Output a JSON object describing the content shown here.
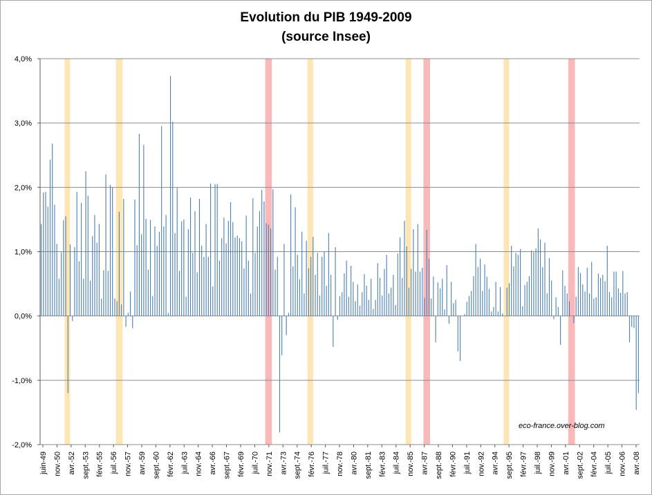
{
  "chart_data": {
    "type": "bar",
    "title": "Evolution du PIB 1949-2009",
    "subtitle": "(source Insee)",
    "credit": "eco-france.over-blog.com",
    "y_ticks": [
      "4,0%",
      "3,0%",
      "2,0%",
      "1,0%",
      "0,0%",
      "-1,0%",
      "-2,0%"
    ],
    "ylim": [
      -2.0,
      4.0
    ],
    "grid": "horizontal",
    "x_start": "1949-Q2",
    "x_tick_labels": [
      "juin-49",
      "nov.-50",
      "avr.-52",
      "sept.-53",
      "févr.-55",
      "juil.-56",
      "nov.-57",
      "avr.-59",
      "sept.-60",
      "févr.-62",
      "juil.-63",
      "nov.-64",
      "avr.-66",
      "sept.-67",
      "févr.-69",
      "juil.-70",
      "nov.-71",
      "avr.-73",
      "sept.-74",
      "févr.-76",
      "juil.-77",
      "nov.-78",
      "avr.-80",
      "sept.-81",
      "févr.-83",
      "juil.-84",
      "nov.-85",
      "avr.-87",
      "sept.-88",
      "févr.-90",
      "juil.-91",
      "nov.-92",
      "avr.-94",
      "sept.-95",
      "févr.-97",
      "juil.-98",
      "nov.-99",
      "avr.-01",
      "sept.-02",
      "févr.-04",
      "juil.-05",
      "nov.-06",
      "avr.-08"
    ],
    "values": [
      1.43,
      1.92,
      1.93,
      1.7,
      2.43,
      2.68,
      1.73,
      1.12,
      0.58,
      0.99,
      1.49,
      1.55,
      -1.2,
      1.11,
      -0.08,
      1.07,
      1.93,
      0.85,
      1.76,
      0.58,
      2.25,
      1.87,
      0.55,
      1.24,
      1.57,
      1.14,
      1.43,
      0.27,
      0.71,
      2.2,
      0.7,
      2.04,
      2.0,
      0.27,
      0.23,
      1.62,
      0.18,
      1.82,
      -0.17,
      0.05,
      0.38,
      -0.19,
      1.81,
      1.1,
      2.83,
      1.27,
      2.66,
      1.51,
      0.72,
      1.49,
      0.31,
      1.39,
      1.09,
      1.31,
      2.95,
      1.39,
      1.57,
      0.05,
      3.73,
      3.02,
      1.29,
      1.99,
      0.7,
      1.47,
      1.5,
      0.3,
      1.35,
      1.84,
      0.98,
      1.63,
      0.68,
      1.82,
      1.09,
      0.92,
      1.43,
      0.92,
      2.06,
      0.46,
      2.05,
      2.05,
      0.86,
      1.21,
      1.53,
      1.13,
      1.48,
      1.77,
      1.46,
      1.22,
      1.25,
      1.21,
      1.16,
      0.74,
      1.56,
      0.86,
      0.35,
      1.83,
      0.98,
      1.39,
      1.63,
      1.96,
      1.78,
      1.44,
      1.42,
      1.36,
      1.97,
      0.72,
      0.92,
      -1.81,
      -0.61,
      1.12,
      -0.3,
      0.05,
      1.89,
      0.77,
      1.69,
      0.95,
      0.57,
      1.31,
      0.35,
      1.17,
      0.74,
      0.92,
      1.23,
      0.64,
      0.98,
      0.32,
      0.92,
      1.0,
      0.47,
      1.29,
      0.64,
      -0.48,
      1.07,
      -0.06,
      0.31,
      0.37,
      0.66,
      0.86,
      0.3,
      0.78,
      0.53,
      0.23,
      0.49,
      0.16,
      0.37,
      0.65,
      0.47,
      0.25,
      0.58,
      0.11,
      0.25,
      0.82,
      0.59,
      0.32,
      0.73,
      0.95,
      0.35,
      0.44,
      0.64,
      0.17,
      0.97,
      1.22,
      0.59,
      1.48,
      1.08,
      0.44,
      0.73,
      1.35,
      0.69,
      1.43,
      0.69,
      0.75,
      0.28,
      1.34,
      0.89,
      0.27,
      0.61,
      -0.41,
      0.52,
      0.43,
      0.58,
      0.1,
      0.79,
      -0.12,
      0.53,
      0.2,
      0.25,
      -0.55,
      -0.7,
      0.0,
      0.03,
      0.22,
      0.31,
      0.39,
      0.62,
      1.12,
      0.76,
      0.89,
      0.39,
      0.8,
      0.61,
      0.42,
      0.07,
      0.14,
      0.53,
      0.07,
      0.45,
      0.04,
      0.0,
      0.44,
      0.51,
      1.09,
      0.77,
      0.98,
      0.95,
      1.04,
      0.15,
      0.48,
      0.53,
      0.62,
      1.02,
      0.99,
      1.05,
      1.36,
      1.19,
      0.76,
      1.14,
      0.35,
      0.9,
      0.55,
      -0.05,
      0.29,
      0.14,
      -0.45,
      0.71,
      0.47,
      0.35,
      0.23,
      0.0,
      -0.11,
      0.3,
      0.76,
      0.67,
      0.49,
      0.38,
      0.75,
      0.35,
      0.84,
      0.27,
      0.29,
      0.66,
      0.59,
      0.64,
      0.54,
      1.09,
      0.37,
      0.29,
      0.69,
      0.69,
      0.43,
      0.36,
      0.7,
      0.35,
      0.37,
      -0.41,
      -0.17,
      -0.19,
      -1.46,
      -1.2
    ],
    "recession_bands": [
      {
        "from": 11,
        "to": 12,
        "color": "#fde5b4"
      },
      {
        "from": 34,
        "to": 36,
        "color": "#fde5b4"
      },
      {
        "from": 101,
        "to": 103,
        "color": "#f9b9bb"
      },
      {
        "from": 120,
        "to": 121,
        "color": "#fde5b4"
      },
      {
        "from": 164,
        "to": 165,
        "color": "#fde5b4"
      },
      {
        "from": 172,
        "to": 174,
        "color": "#f9b9bb"
      },
      {
        "from": 208,
        "to": 209,
        "color": "#fde5b4"
      },
      {
        "from": 237,
        "to": 239,
        "color": "#f9b9bb"
      }
    ],
    "bar_color": "#4a7eb0",
    "colors": {
      "grid": "#8c8c8c",
      "axis": "#595959"
    }
  }
}
